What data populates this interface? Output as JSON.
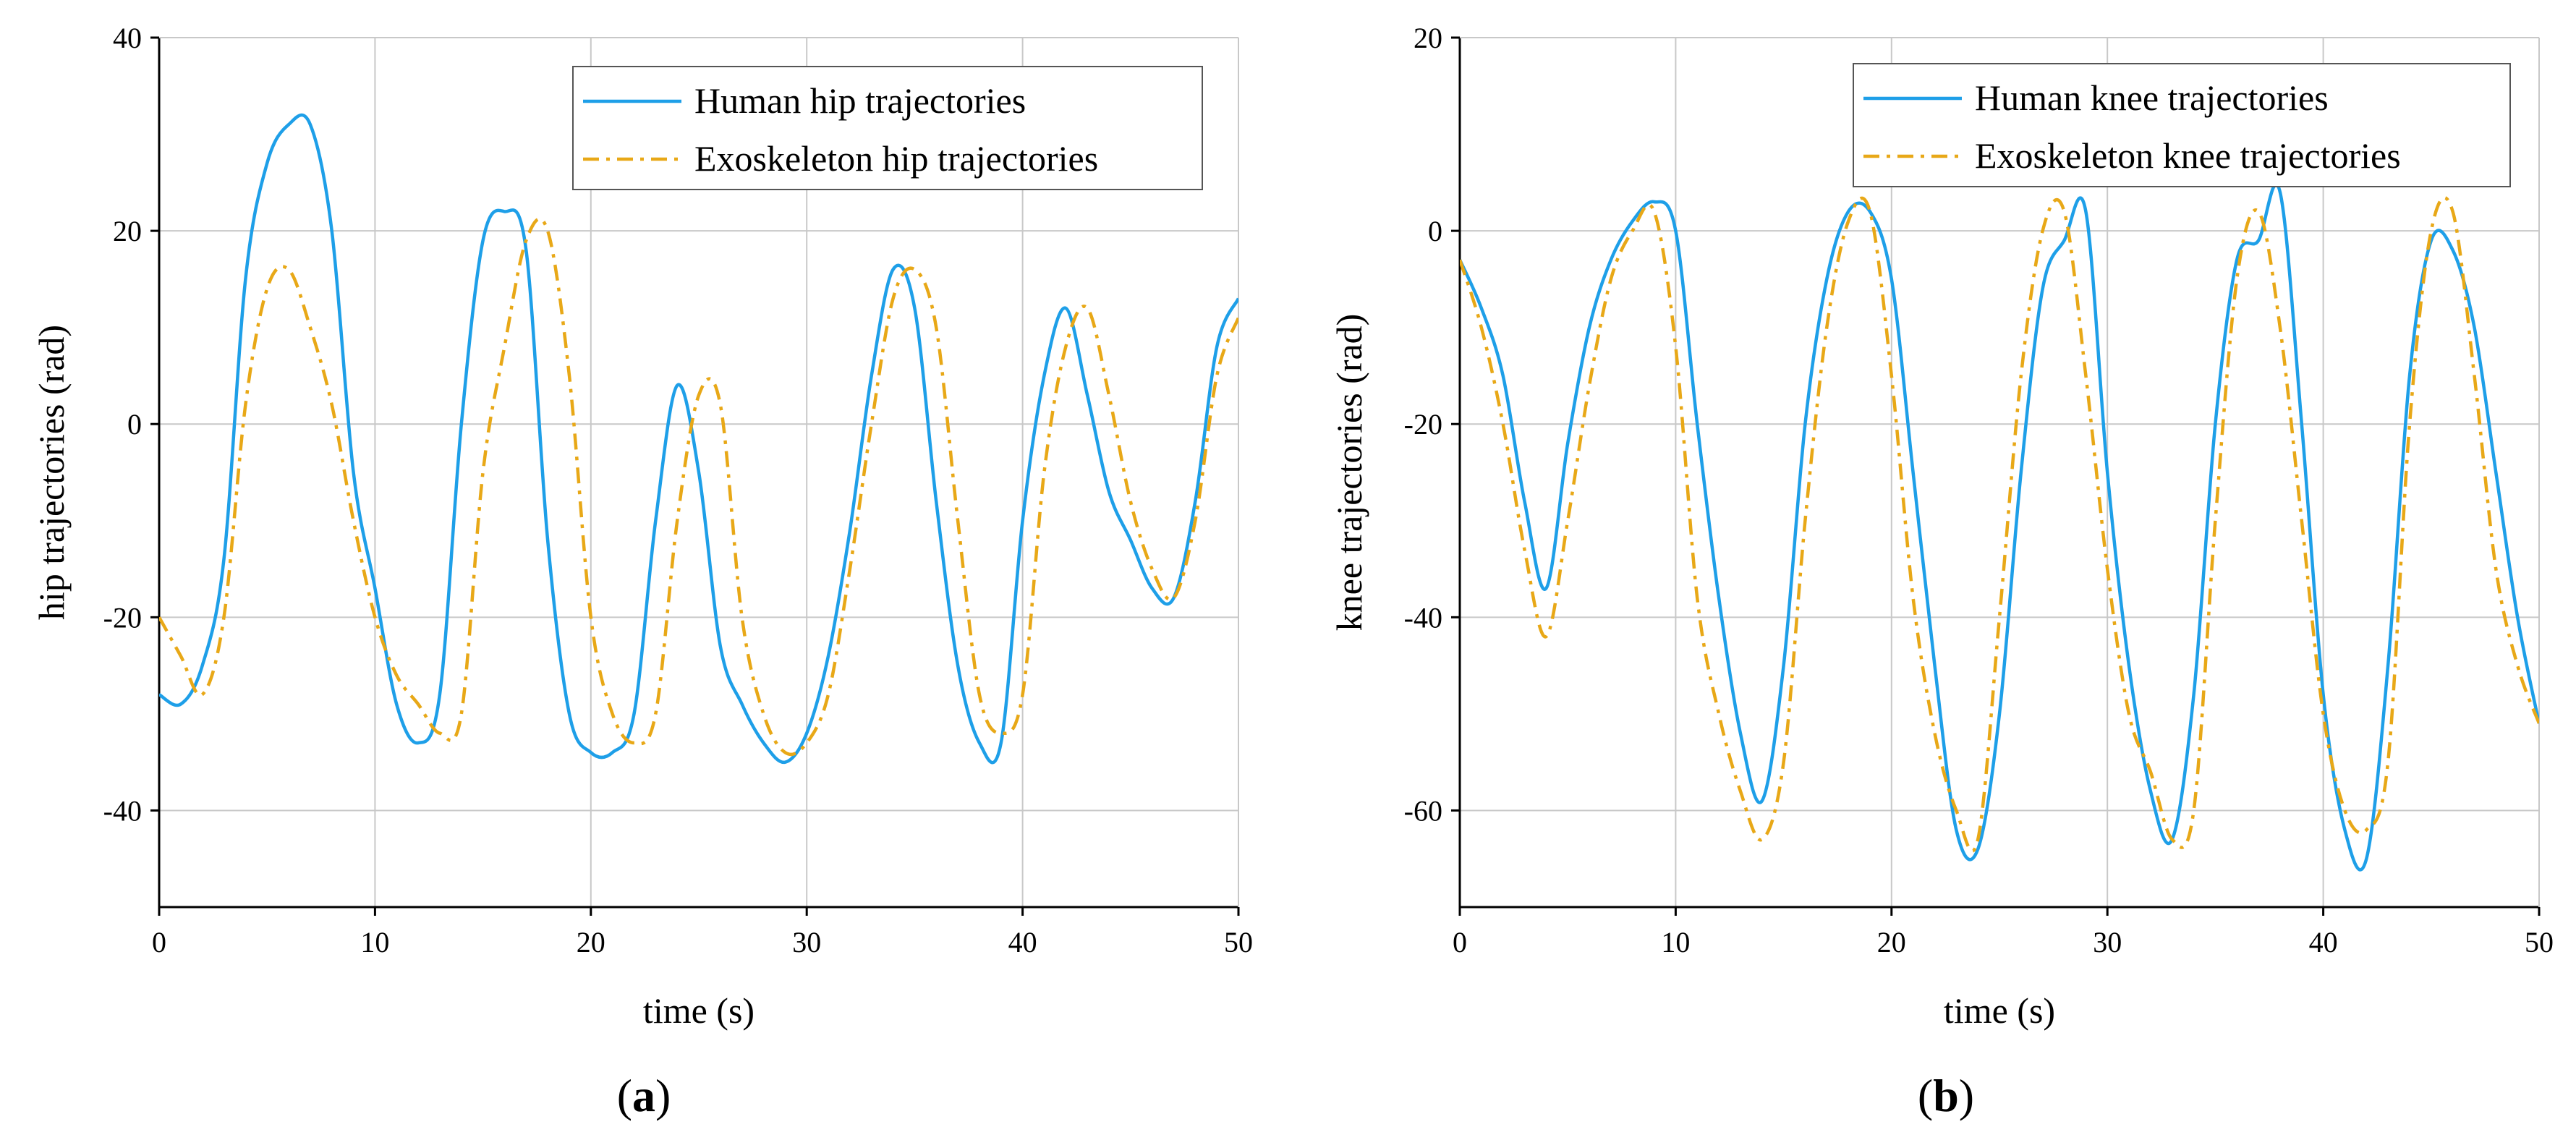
{
  "colors": {
    "human": "#1E9FE8",
    "exo": "#E8A817",
    "grid": "#c8c8c8",
    "axis": "#000000"
  },
  "chart_data": [
    {
      "type": "line",
      "panel": "a",
      "panel_label": {
        "open": "(",
        "letter": "a",
        "close": ")"
      },
      "title": "",
      "xlabel": "time (s)",
      "ylabel": "hip trajectories (rad)",
      "xlim": [
        0,
        50
      ],
      "ylim": [
        -50,
        40
      ],
      "xticks": [
        0,
        10,
        20,
        30,
        40,
        50
      ],
      "yticks": [
        -40,
        -20,
        0,
        20,
        40
      ],
      "grid": true,
      "legend_position": "top-right",
      "series": [
        {
          "name": "Human hip trajectories",
          "style": "solid",
          "x": [
            0,
            1,
            2,
            3,
            4,
            5,
            6,
            7,
            8,
            9,
            10,
            11,
            12,
            13,
            14,
            15,
            16,
            17,
            18,
            19,
            20,
            21,
            22,
            23,
            24,
            25,
            26,
            27,
            28,
            29,
            30,
            31,
            32,
            33,
            34,
            35,
            36,
            37,
            38,
            39,
            40,
            41,
            42,
            43,
            44,
            45,
            46,
            47,
            48,
            49,
            50
          ],
          "y": [
            -28,
            -29,
            -25,
            -14,
            15,
            27,
            31,
            31,
            20,
            -5,
            -17,
            -29,
            -33,
            -28,
            0,
            19,
            22,
            18,
            -12,
            -30,
            -34,
            -34,
            -30,
            -10,
            4,
            -5,
            -23,
            -29,
            -33,
            -35,
            -32,
            -24,
            -11,
            5,
            16,
            12,
            -8,
            -25,
            -33,
            -33,
            -10,
            5,
            12,
            3,
            -7,
            -12,
            -17,
            -18,
            -8,
            8,
            13
          ]
        },
        {
          "name": "Exoskeleton hip trajectories",
          "style": "dashdot",
          "x": [
            0,
            1,
            2,
            3,
            4,
            5,
            6,
            7,
            8,
            9,
            10,
            11,
            12,
            13,
            14,
            15,
            16,
            17,
            18,
            19,
            20,
            21,
            22,
            23,
            24,
            25,
            26,
            27,
            28,
            29,
            30,
            31,
            32,
            33,
            34,
            35,
            36,
            37,
            38,
            39,
            40,
            41,
            42,
            43,
            44,
            45,
            46,
            47,
            48,
            49,
            50
          ],
          "y": [
            -20,
            -24,
            -28,
            -20,
            2,
            14,
            16,
            10,
            2,
            -10,
            -20,
            -26,
            -29,
            -32,
            -30,
            -5,
            8,
            19,
            20,
            5,
            -20,
            -30,
            -33,
            -30,
            -10,
            3,
            2,
            -20,
            -30,
            -34,
            -33,
            -28,
            -15,
            0,
            13,
            16,
            10,
            -10,
            -28,
            -32,
            -28,
            -5,
            8,
            12,
            3,
            -8,
            -15,
            -18,
            -10,
            5,
            11
          ]
        }
      ]
    },
    {
      "type": "line",
      "panel": "b",
      "panel_label": {
        "open": "(",
        "letter": "b",
        "close": ")"
      },
      "title": "",
      "xlabel": "time (s)",
      "ylabel": "knee trajectories (rad)",
      "xlim": [
        0,
        50
      ],
      "ylim": [
        -70,
        20
      ],
      "xticks": [
        0,
        10,
        20,
        30,
        40,
        50
      ],
      "yticks": [
        -60,
        -40,
        -20,
        0,
        20
      ],
      "grid": true,
      "legend_position": "top-right",
      "series": [
        {
          "name": "Human knee trajectories",
          "style": "solid",
          "x": [
            0,
            1,
            2,
            3,
            4,
            5,
            6,
            7,
            8,
            9,
            10,
            11,
            12,
            13,
            14,
            15,
            16,
            17,
            18,
            19,
            20,
            21,
            22,
            23,
            24,
            25,
            26,
            27,
            28,
            29,
            30,
            31,
            32,
            33,
            34,
            35,
            36,
            37,
            38,
            39,
            40,
            41,
            42,
            43,
            44,
            45,
            46,
            47,
            48,
            49,
            50
          ],
          "y": [
            -3,
            -8,
            -15,
            -28,
            -37,
            -22,
            -10,
            -3,
            1,
            3,
            0,
            -20,
            -38,
            -52,
            -59,
            -45,
            -20,
            -5,
            2,
            2,
            -5,
            -25,
            -45,
            -62,
            -64,
            -50,
            -25,
            -6,
            -1,
            2,
            -25,
            -45,
            -58,
            -63,
            -48,
            -20,
            -3,
            -1,
            4,
            -20,
            -48,
            -62,
            -65,
            -45,
            -15,
            -1,
            -2,
            -10,
            -25,
            -40,
            -51
          ]
        },
        {
          "name": "Exoskeleton knee trajectories",
          "style": "dashdot",
          "x": [
            0,
            1,
            2,
            3,
            4,
            5,
            6,
            7,
            8,
            9,
            10,
            11,
            12,
            13,
            14,
            15,
            16,
            17,
            18,
            19,
            20,
            21,
            22,
            23,
            24,
            25,
            26,
            27,
            28,
            29,
            30,
            31,
            32,
            33,
            34,
            35,
            36,
            37,
            38,
            39,
            40,
            41,
            42,
            43,
            44,
            45,
            46,
            47,
            48,
            49,
            50
          ],
          "y": [
            -3,
            -10,
            -20,
            -33,
            -42,
            -30,
            -16,
            -5,
            0,
            2,
            -12,
            -38,
            -50,
            -58,
            -63,
            -55,
            -30,
            -10,
            1,
            2,
            -15,
            -38,
            -52,
            -60,
            -63,
            -40,
            -15,
            0,
            2,
            -15,
            -35,
            -50,
            -56,
            -63,
            -60,
            -30,
            -5,
            2,
            -10,
            -30,
            -50,
            -60,
            -62,
            -55,
            -20,
            0,
            2,
            -15,
            -35,
            -45,
            -51
          ]
        }
      ]
    }
  ]
}
